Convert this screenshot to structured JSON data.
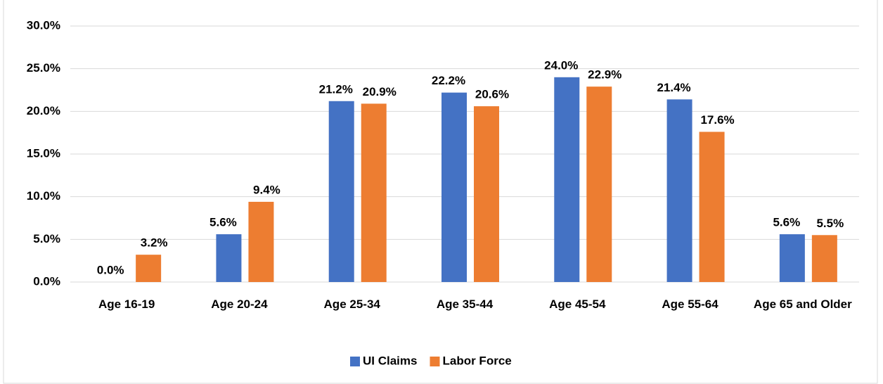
{
  "chart_data": {
    "type": "bar",
    "categories": [
      "Age 16-19",
      "Age 20-24",
      "Age 25-34",
      "Age 35-44",
      "Age 45-54",
      "Age 55-64",
      "Age 65 and Older"
    ],
    "series": [
      {
        "name": "UI Claims",
        "color": "#4472c4",
        "values": [
          0.0,
          5.6,
          21.2,
          22.2,
          24.0,
          21.4,
          5.6
        ],
        "value_labels": [
          "0.0%",
          "5.6%",
          "21.2%",
          "22.2%",
          "24.0%",
          "21.4%",
          "5.6%"
        ]
      },
      {
        "name": "Labor Force",
        "color": "#ed7d31",
        "values": [
          3.2,
          9.4,
          20.9,
          20.6,
          22.9,
          17.6,
          5.5
        ],
        "value_labels": [
          "3.2%",
          "9.4%",
          "20.9%",
          "20.6%",
          "22.9%",
          "17.6%",
          "5.5%"
        ]
      }
    ],
    "ylim": [
      0,
      30
    ],
    "yticks": [
      {
        "value": 0,
        "label": "0.0%"
      },
      {
        "value": 5,
        "label": "5.0%"
      },
      {
        "value": 10,
        "label": "10.0%"
      },
      {
        "value": 15,
        "label": "15.0%"
      },
      {
        "value": 20,
        "label": "20.0%"
      },
      {
        "value": 25,
        "label": "25.0%"
      },
      {
        "value": 30,
        "label": "30.0%"
      }
    ],
    "grid": true,
    "legend": "bottom"
  }
}
